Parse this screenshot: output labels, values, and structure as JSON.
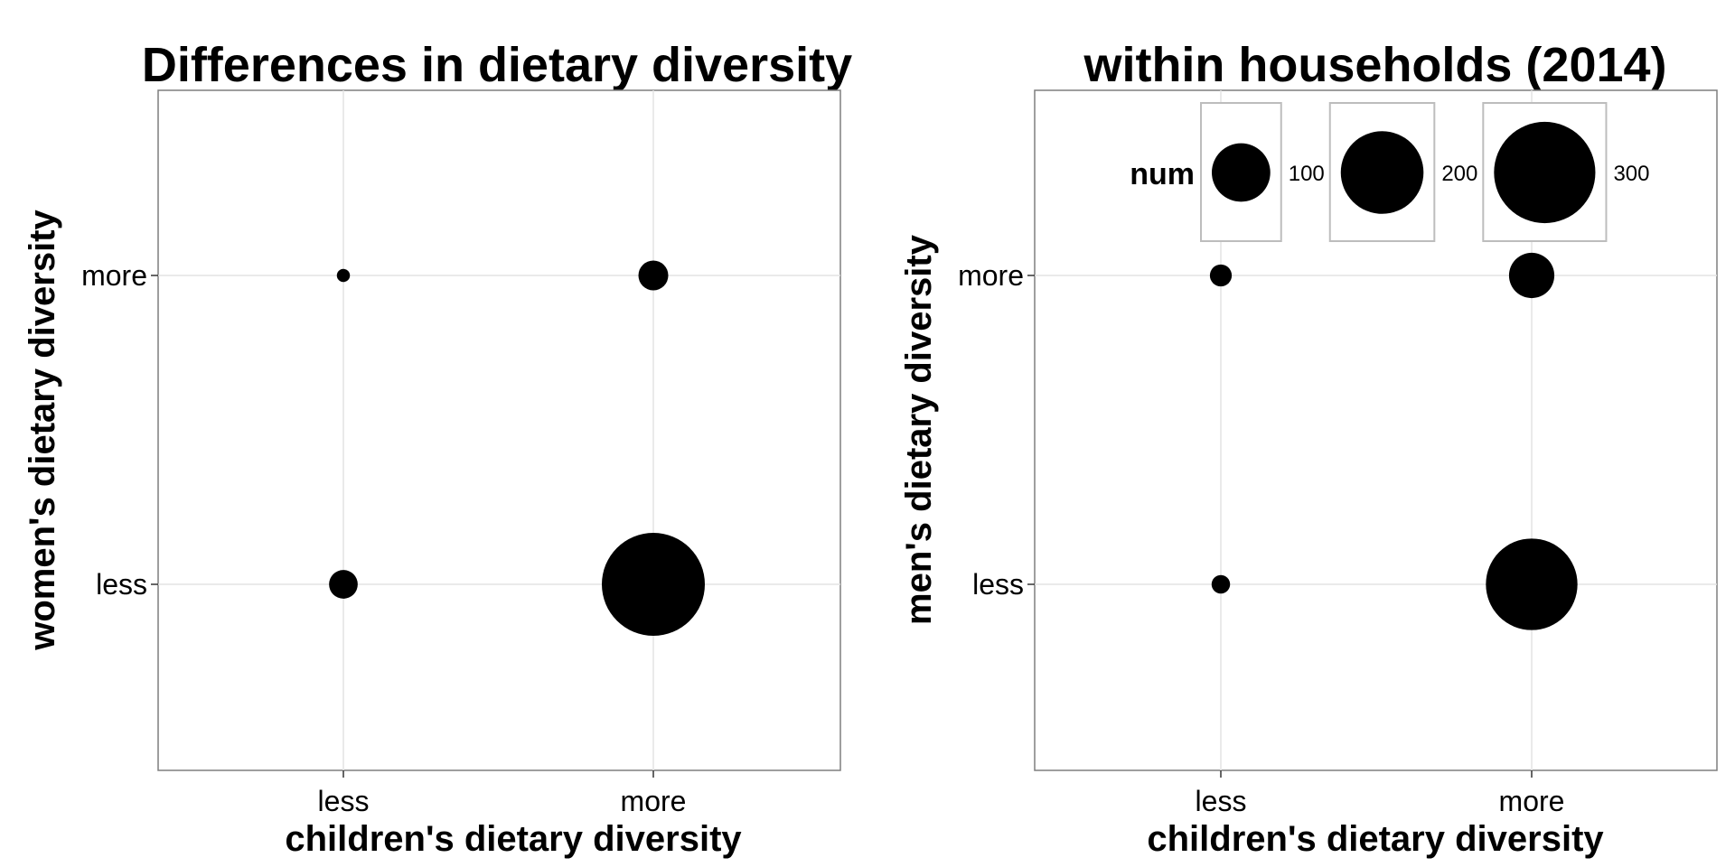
{
  "chart_data": [
    {
      "type": "scatter",
      "title": "Differences in dietary diversity",
      "xlabel": "children's dietary diversity",
      "ylabel": "women's dietary diversity",
      "x_categories": [
        "less",
        "more"
      ],
      "y_categories": [
        "less",
        "more"
      ],
      "points": [
        {
          "x": "less",
          "y": "more",
          "num": 5
        },
        {
          "x": "more",
          "y": "more",
          "num": 26
        },
        {
          "x": "less",
          "y": "less",
          "num": 24
        },
        {
          "x": "more",
          "y": "less",
          "num": 310
        }
      ],
      "grid": true
    },
    {
      "type": "scatter",
      "title": "within households (2014)",
      "xlabel": "children's dietary diversity",
      "ylabel": "men's dietary diversity",
      "x_categories": [
        "less",
        "more"
      ],
      "y_categories": [
        "less",
        "more"
      ],
      "points": [
        {
          "x": "less",
          "y": "more",
          "num": 14
        },
        {
          "x": "more",
          "y": "more",
          "num": 60
        },
        {
          "x": "less",
          "y": "less",
          "num": 10
        },
        {
          "x": "more",
          "y": "less",
          "num": 245
        }
      ],
      "grid": true,
      "legend": {
        "title": "num",
        "values": [
          100,
          200,
          300
        ],
        "labels": [
          "100",
          "200",
          "300"
        ],
        "placement": "top-inside"
      }
    }
  ]
}
